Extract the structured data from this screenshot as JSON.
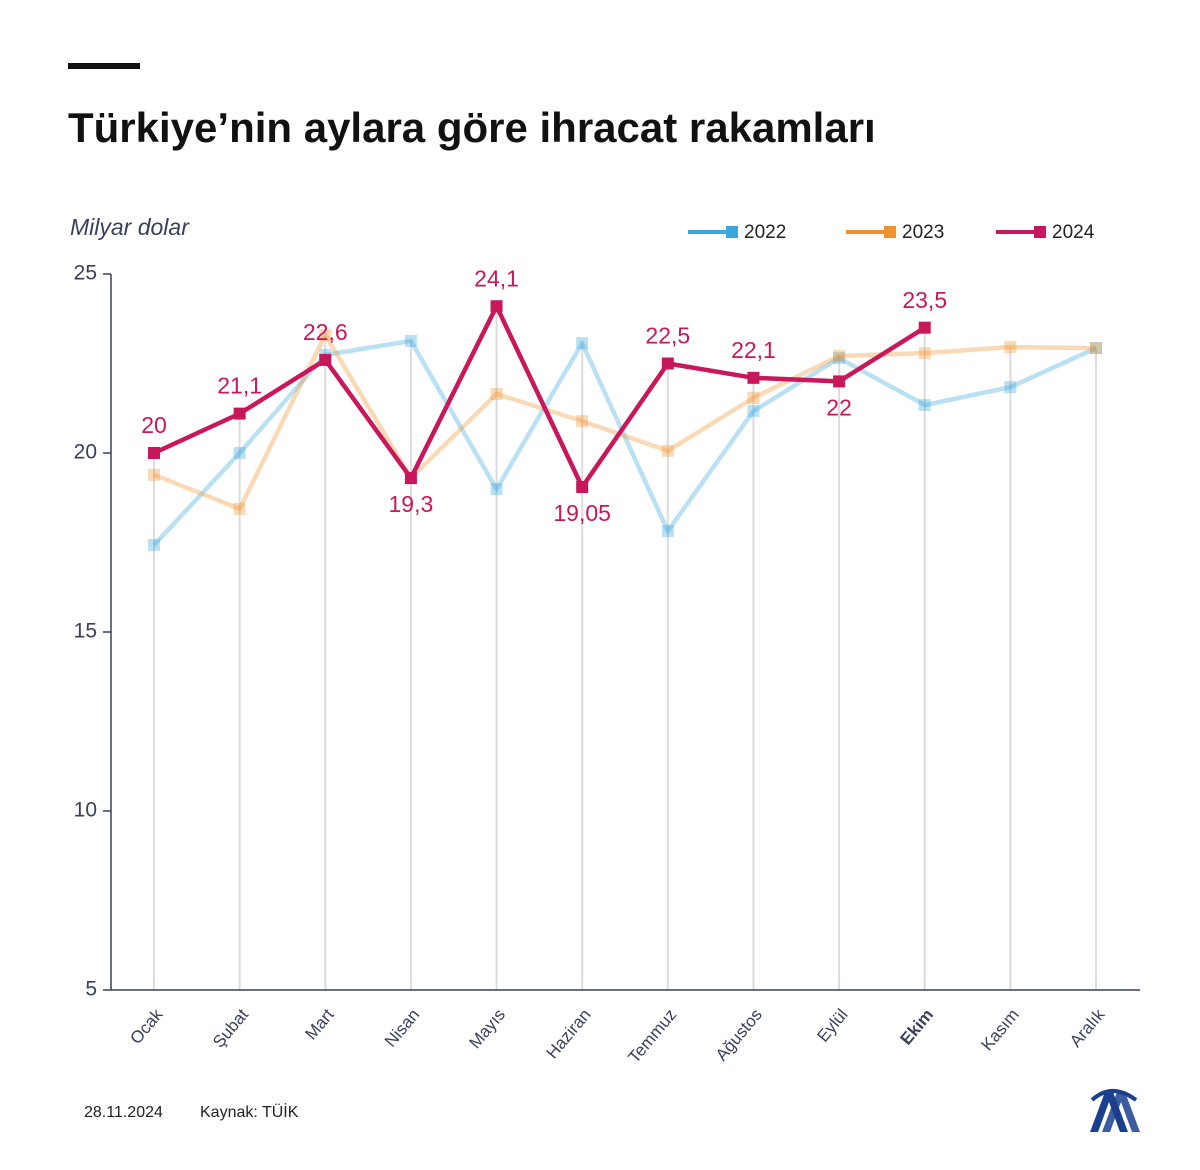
{
  "chart_data": {
    "type": "line",
    "title": "Türkiye’nin aylara göre ihracat rakamları",
    "y_axis_label": "Milyar dolar",
    "categories": [
      "Ocak",
      "Şubat",
      "Mart",
      "Nisan",
      "Mayıs",
      "Haziran",
      "Temmuz",
      "Ağustos",
      "Eylül",
      "Ekim",
      "Kasım",
      "Aralık"
    ],
    "highlight": "Ekim",
    "series": [
      {
        "name": "2022",
        "color": "#3aa8dc",
        "opacity": 0.35,
        "values": [
          17.43,
          20.0,
          22.74,
          23.13,
          18.99,
          23.07,
          17.82,
          21.17,
          22.65,
          21.34,
          21.84,
          22.93
        ]
      },
      {
        "name": "2023",
        "color": "#f0922e",
        "opacity": 0.35,
        "values": [
          19.39,
          18.44,
          23.3,
          19.3,
          21.65,
          20.89,
          20.06,
          21.54,
          22.71,
          22.79,
          22.96,
          22.93
        ]
      },
      {
        "name": "2024",
        "color": "#c8175a",
        "opacity": 1,
        "values": [
          20,
          21.1,
          22.6,
          19.3,
          24.1,
          19.05,
          22.5,
          22.1,
          22,
          23.5,
          null,
          null
        ],
        "value_labels": [
          "20",
          "21,1",
          "22,6",
          "19,3",
          "24,1",
          "19,05",
          "22,5",
          "22,1",
          "22",
          "23,5",
          null,
          null
        ]
      }
    ],
    "ylim": [
      5,
      25
    ],
    "yticks": [
      5,
      10,
      15,
      20,
      25
    ],
    "date": "28.11.2024",
    "source": "Kaynak: TÜİK"
  }
}
